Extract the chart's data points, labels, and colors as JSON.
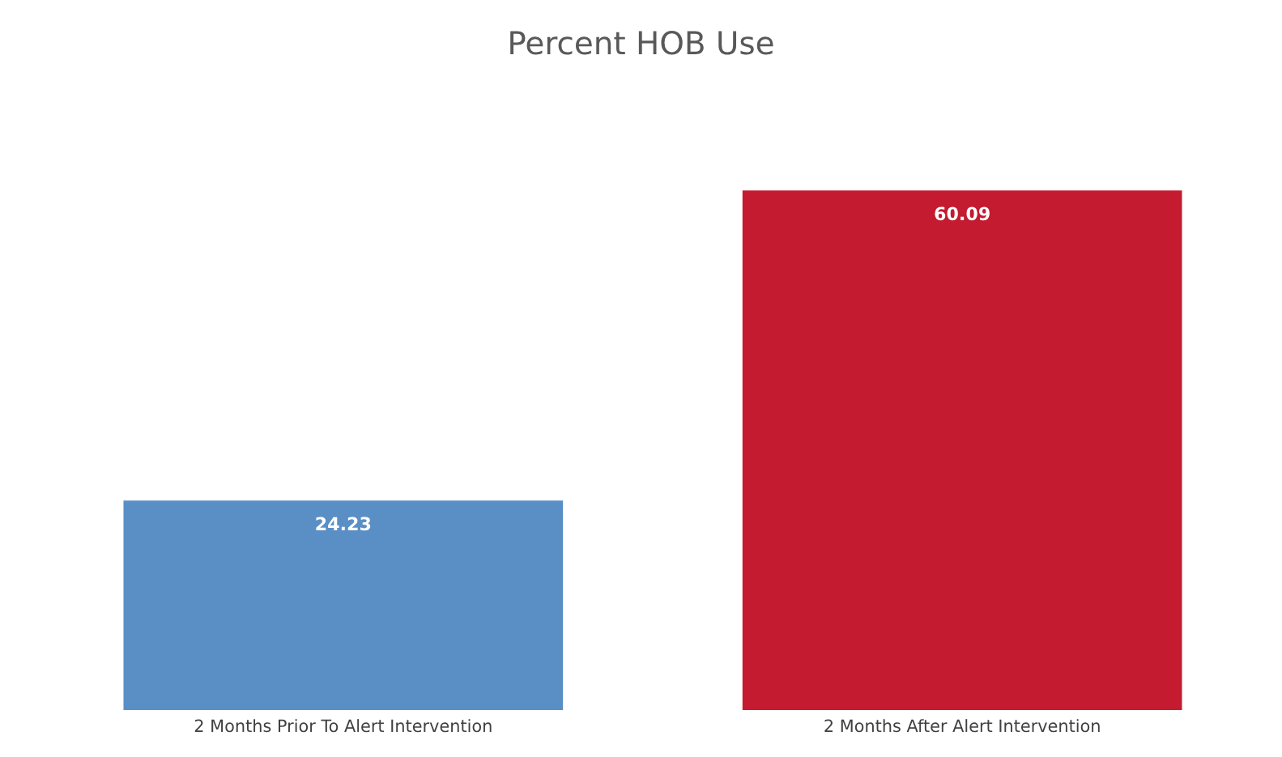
{
  "chart_data": {
    "type": "bar",
    "title": "Percent HOB Use",
    "categories": [
      "2 Months Prior To Alert Intervention",
      "2 Months After Alert Intervention"
    ],
    "values": [
      24.23,
      60.09
    ],
    "colors": [
      "#5a8fc6",
      "#c41b30"
    ],
    "data_labels": true,
    "grid": false,
    "legend": false
  }
}
